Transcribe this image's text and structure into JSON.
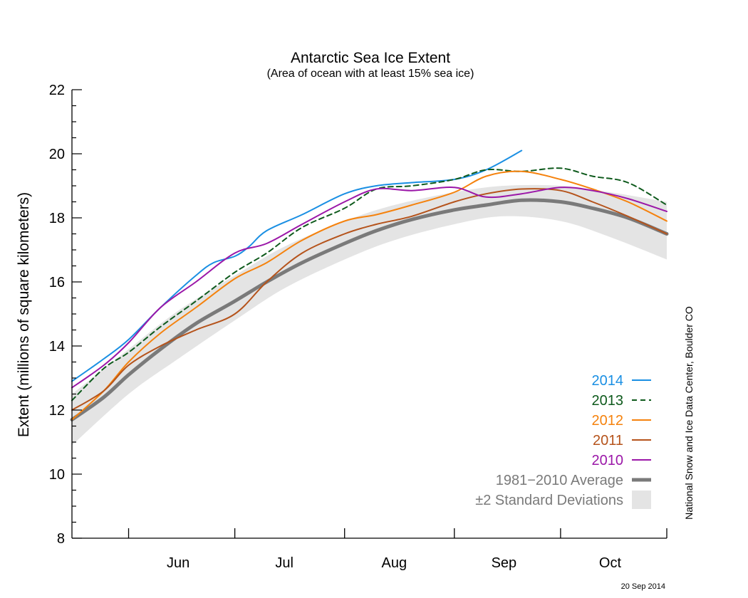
{
  "chart_data": {
    "type": "line",
    "title": "Antarctic Sea Ice Extent",
    "subtitle": "(Area of ocean with at least 15% sea ice)",
    "ylabel": "Extent (millions of square kilometers)",
    "xlabel": "",
    "ylim": [
      8,
      22
    ],
    "yticks": [
      "8",
      "10",
      "12",
      "14",
      "16",
      "18",
      "20",
      "22"
    ],
    "x_domain": [
      "May 16",
      "Oct 31"
    ],
    "xticks": [
      {
        "label": "Jun",
        "date": "Jun 15"
      },
      {
        "label": "Jul",
        "date": "Jul 15"
      },
      {
        "label": "Aug",
        "date": "Aug 15"
      },
      {
        "label": "Sep",
        "date": "Sep 15"
      },
      {
        "label": "Oct",
        "date": "Oct 15"
      }
    ],
    "month_boundaries": [
      "Jun 1",
      "Jul 1",
      "Aug 1",
      "Sep 1",
      "Oct 1"
    ],
    "grid": false,
    "legend_position": "bottom-right",
    "band": {
      "name": "±2 Standard Deviations",
      "color": "#e4e4e4",
      "points": [
        [
          "May 16",
          10.9,
          12.5
        ],
        [
          "Jun 1",
          12.5,
          13.9
        ],
        [
          "Jun 15",
          13.6,
          15.1
        ],
        [
          "Jul 1",
          14.8,
          16.2
        ],
        [
          "Jul 15",
          15.8,
          17.1
        ],
        [
          "Aug 1",
          16.7,
          17.9
        ],
        [
          "Aug 15",
          17.3,
          18.4
        ],
        [
          "Sep 1",
          17.8,
          18.8
        ],
        [
          "Sep 15",
          18.05,
          19.0
        ],
        [
          "Oct 1",
          17.9,
          19.0
        ],
        [
          "Oct 15",
          17.4,
          18.8
        ],
        [
          "Oct 31",
          16.7,
          18.5
        ]
      ]
    },
    "series": [
      {
        "name": "1981−2010 Average",
        "label": "1981−2010 Average",
        "color": "#7a7a7a",
        "width": 5,
        "dash": "",
        "x": [
          "May 16",
          "May 25",
          "Jun 1",
          "Jun 10",
          "Jun 20",
          "Jul 1",
          "Jul 10",
          "Jul 20",
          "Aug 1",
          "Aug 10",
          "Aug 20",
          "Sep 1",
          "Sep 10",
          "Sep 20",
          "Oct 1",
          "Oct 10",
          "Oct 20",
          "Oct 31"
        ],
        "y": [
          11.7,
          12.4,
          13.1,
          13.9,
          14.7,
          15.4,
          16.0,
          16.6,
          17.2,
          17.6,
          17.95,
          18.25,
          18.4,
          18.55,
          18.5,
          18.3,
          18.0,
          17.5
        ]
      },
      {
        "name": "2014",
        "label": "2014",
        "color": "#1a8fe3",
        "width": 2,
        "dash": "",
        "x": [
          "May 16",
          "May 25",
          "Jun 1",
          "Jun 10",
          "Jun 20",
          "Jun 25",
          "Jul 1",
          "Jul 5",
          "Jul 10",
          "Jul 20",
          "Aug 1",
          "Aug 10",
          "Aug 20",
          "Sep 1",
          "Sep 10",
          "Sep 20"
        ],
        "y": [
          12.9,
          13.6,
          14.2,
          15.2,
          16.2,
          16.6,
          16.8,
          17.1,
          17.6,
          18.1,
          18.75,
          19.0,
          19.1,
          19.2,
          19.5,
          20.1
        ]
      },
      {
        "name": "2013",
        "label": "2013",
        "color": "#0e5a1c",
        "width": 2,
        "dash": "7 5",
        "x": [
          "May 16",
          "May 25",
          "Jun 1",
          "Jun 10",
          "Jun 20",
          "Jul 1",
          "Jul 10",
          "Jul 20",
          "Aug 1",
          "Aug 10",
          "Aug 20",
          "Sep 1",
          "Sep 10",
          "Sep 20",
          "Oct 1",
          "Oct 10",
          "Oct 20",
          "Oct 31"
        ],
        "y": [
          12.3,
          13.3,
          13.8,
          14.6,
          15.4,
          16.3,
          16.9,
          17.7,
          18.3,
          18.9,
          19.0,
          19.2,
          19.5,
          19.45,
          19.55,
          19.3,
          19.1,
          18.4
        ]
      },
      {
        "name": "2012",
        "label": "2012",
        "color": "#f5820d",
        "width": 2,
        "dash": "",
        "x": [
          "May 16",
          "May 25",
          "Jun 1",
          "Jun 10",
          "Jun 20",
          "Jul 1",
          "Jul 10",
          "Jul 20",
          "Aug 1",
          "Aug 10",
          "Aug 20",
          "Sep 1",
          "Sep 10",
          "Sep 20",
          "Oct 1",
          "Oct 10",
          "Oct 20",
          "Oct 31"
        ],
        "y": [
          11.7,
          12.6,
          13.5,
          14.4,
          15.2,
          16.1,
          16.6,
          17.3,
          17.9,
          18.1,
          18.4,
          18.8,
          19.3,
          19.45,
          19.2,
          18.9,
          18.5,
          17.9
        ]
      },
      {
        "name": "2011",
        "label": "2011",
        "color": "#b5531b",
        "width": 2,
        "dash": "",
        "x": [
          "May 16",
          "May 25",
          "Jun 1",
          "Jun 10",
          "Jun 20",
          "Jul 1",
          "Jul 10",
          "Jul 20",
          "Aug 1",
          "Aug 10",
          "Aug 20",
          "Sep 1",
          "Sep 10",
          "Sep 20",
          "Oct 1",
          "Oct 10",
          "Oct 20",
          "Oct 31"
        ],
        "y": [
          12.0,
          12.6,
          13.4,
          14.0,
          14.5,
          15.0,
          16.0,
          16.9,
          17.5,
          17.8,
          18.05,
          18.5,
          18.75,
          18.9,
          18.85,
          18.5,
          18.05,
          17.5
        ]
      },
      {
        "name": "2010",
        "label": "2010",
        "color": "#9b17a8",
        "width": 2,
        "dash": "",
        "x": [
          "May 16",
          "May 25",
          "Jun 1",
          "Jun 10",
          "Jun 20",
          "Jul 1",
          "Jul 10",
          "Jul 20",
          "Aug 1",
          "Aug 10",
          "Aug 20",
          "Sep 1",
          "Sep 10",
          "Sep 20",
          "Oct 1",
          "Oct 10",
          "Oct 20",
          "Oct 31"
        ],
        "y": [
          12.7,
          13.4,
          14.1,
          15.2,
          16.0,
          16.9,
          17.2,
          17.8,
          18.5,
          18.9,
          18.85,
          18.95,
          18.65,
          18.75,
          18.95,
          18.85,
          18.6,
          18.2
        ]
      }
    ],
    "legend": [
      {
        "label": "2014",
        "color": "#1a8fe3",
        "kind": "solid"
      },
      {
        "label": "2013",
        "color": "#0e5a1c",
        "kind": "dashed"
      },
      {
        "label": "2012",
        "color": "#f5820d",
        "kind": "solid"
      },
      {
        "label": "2011",
        "color": "#b5531b",
        "kind": "solid"
      },
      {
        "label": "2010",
        "color": "#9b17a8",
        "kind": "solid"
      },
      {
        "label": "1981−2010 Average",
        "color": "#7a7a7a",
        "kind": "thick"
      },
      {
        "label": "±2 Standard Deviations",
        "color": "#7a7a7a",
        "kind": "band"
      }
    ],
    "credit": "National Snow and Ice Data Center, Boulder CO",
    "date_stamp": "20 Sep 2014"
  }
}
